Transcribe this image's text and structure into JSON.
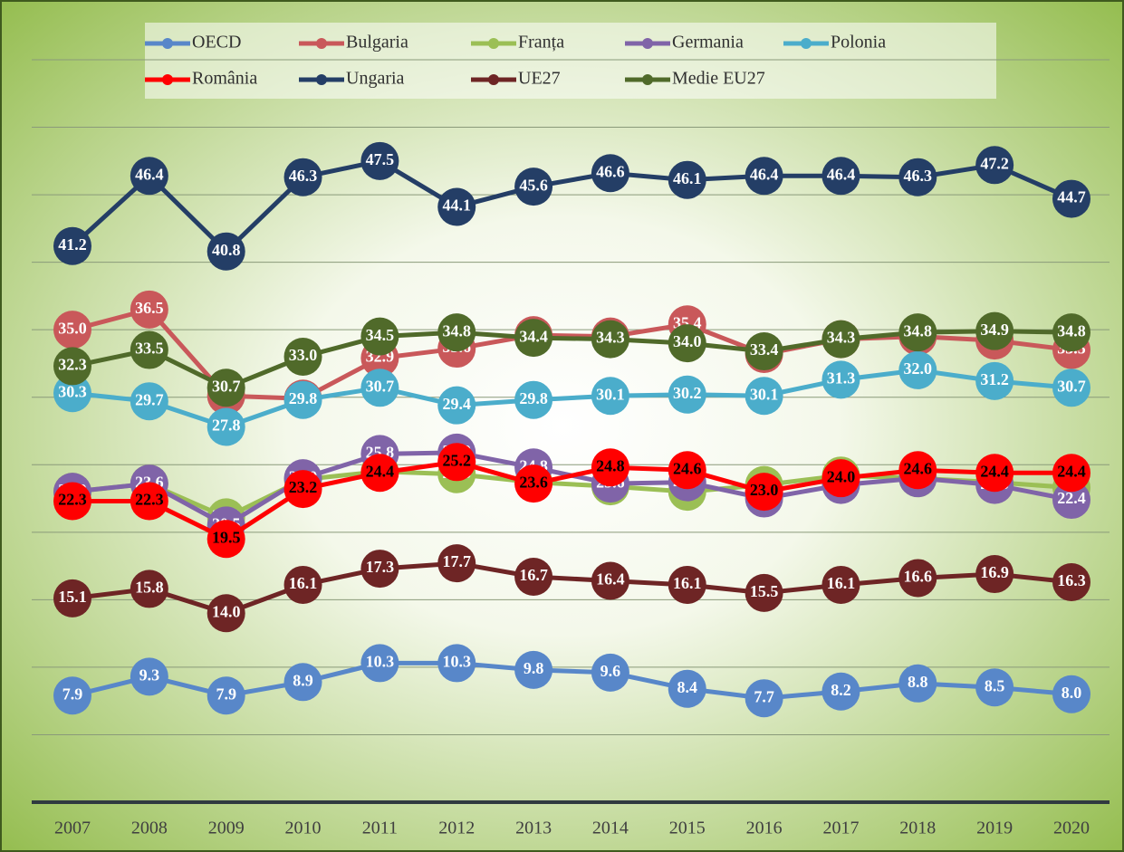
{
  "chart_data": {
    "type": "line",
    "x": [
      "2007",
      "2008",
      "2009",
      "2010",
      "2011",
      "2012",
      "2013",
      "2014",
      "2015",
      "2016",
      "2017",
      "2018",
      "2019",
      "2020"
    ],
    "ylim": [
      0,
      55
    ],
    "yticks": [
      0,
      5,
      10,
      15,
      20,
      25,
      30,
      35,
      40,
      45,
      50,
      55
    ],
    "grid": true,
    "legend": "top",
    "series": [
      {
        "name": "OECD",
        "color": "#5887c9",
        "label_color": "#ffffff",
        "values": [
          7.9,
          9.3,
          7.9,
          8.9,
          10.3,
          10.3,
          9.8,
          9.6,
          8.4,
          7.7,
          8.2,
          8.8,
          8.5,
          8.0
        ]
      },
      {
        "name": "Bulgaria",
        "color": "#c9585a",
        "label_color": "#ffffff",
        "values": [
          35.0,
          36.5,
          30.1,
          29.9,
          32.9,
          33.6,
          34.6,
          34.5,
          35.4,
          33.2,
          34.3,
          34.5,
          34.2,
          33.5
        ]
      },
      {
        "name": "Franța",
        "color": "#9bbf55",
        "label_color": "#ffffff",
        "values": [
          23.0,
          23.6,
          21.1,
          23.9,
          24.5,
          24.3,
          23.7,
          23.4,
          23.0,
          23.5,
          24.2,
          24.0,
          23.7,
          23.3
        ]
      },
      {
        "name": "Germania",
        "color": "#8064a8",
        "label_color": "#ffffff",
        "values": [
          23.0,
          23.6,
          20.5,
          24.0,
          25.8,
          25.9,
          24.8,
          23.6,
          23.7,
          22.5,
          23.5,
          24.0,
          23.5,
          22.4
        ]
      },
      {
        "name": "Polonia",
        "color": "#4badcb",
        "label_color": "#ffffff",
        "values": [
          30.3,
          29.7,
          27.8,
          29.8,
          30.7,
          29.4,
          29.8,
          30.1,
          30.2,
          30.1,
          31.3,
          32.0,
          31.2,
          30.7
        ]
      },
      {
        "name": "România",
        "color": "#ff0000",
        "label_color": "#000000",
        "values": [
          22.3,
          22.3,
          19.5,
          23.2,
          24.4,
          25.2,
          23.6,
          24.8,
          24.6,
          23.0,
          24.0,
          24.6,
          24.4,
          24.4
        ]
      },
      {
        "name": "Ungaria",
        "color": "#243e66",
        "label_color": "#ffffff",
        "values": [
          41.2,
          46.4,
          40.8,
          46.3,
          47.5,
          44.1,
          45.6,
          46.6,
          46.1,
          46.4,
          46.4,
          46.3,
          47.2,
          44.7
        ]
      },
      {
        "name": "UE27",
        "color": "#6e2525",
        "label_color": "#ffffff",
        "values": [
          15.1,
          15.8,
          14.0,
          16.1,
          17.3,
          17.7,
          16.7,
          16.4,
          16.1,
          15.5,
          16.1,
          16.6,
          16.9,
          16.3
        ]
      },
      {
        "name": "Medie EU27",
        "color": "#506a2a",
        "label_color": "#ffffff",
        "values": [
          32.3,
          33.5,
          30.7,
          33.0,
          34.5,
          34.8,
          34.4,
          34.3,
          34.0,
          33.4,
          34.3,
          34.8,
          34.9,
          34.8
        ]
      }
    ]
  }
}
